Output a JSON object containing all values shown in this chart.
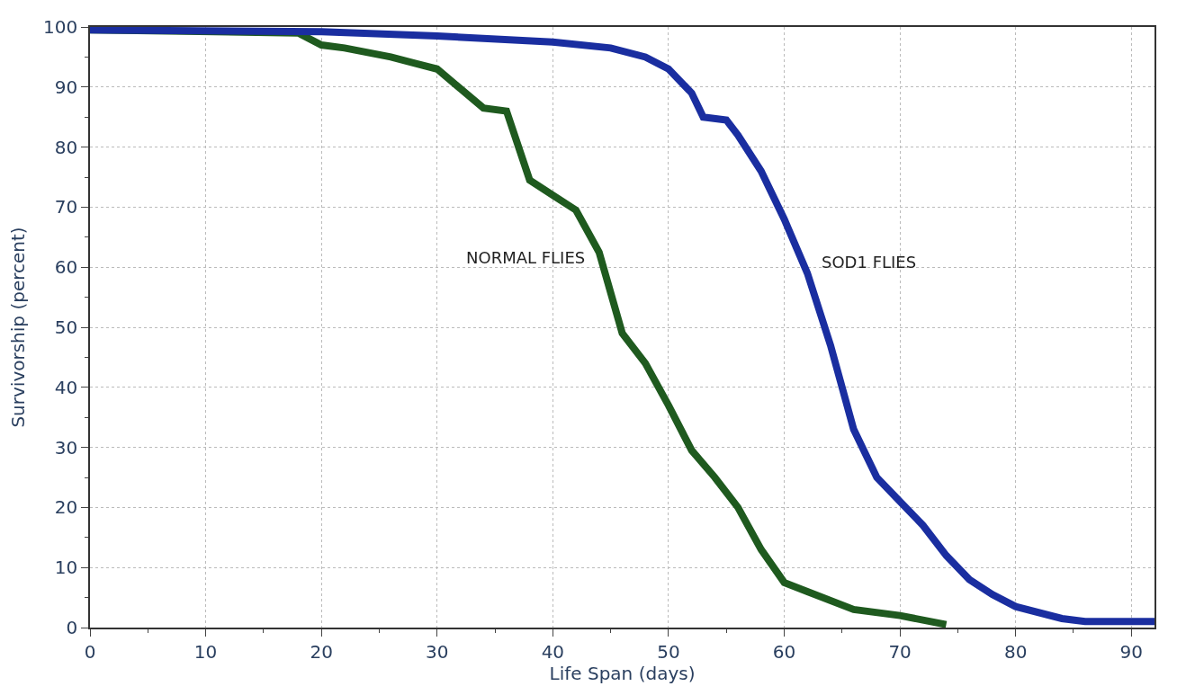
{
  "chart_data": {
    "type": "line",
    "xlabel": "Life Span (days)",
    "ylabel": "Survivorship (percent)",
    "xlim": [
      0,
      92
    ],
    "ylim": [
      0,
      100
    ],
    "xticks": [
      0,
      10,
      20,
      30,
      40,
      50,
      60,
      70,
      80,
      90
    ],
    "yticks": [
      0,
      10,
      20,
      30,
      40,
      50,
      60,
      70,
      80,
      90,
      100
    ],
    "grid": true,
    "legend": false,
    "marker": "none",
    "line_style": "solid",
    "series": [
      {
        "name": "NORMAL FLIES",
        "color": "#1f5a1f",
        "x": [
          0,
          18,
          20,
          22,
          26,
          28,
          30,
          34,
          36,
          38,
          40,
          42,
          44,
          46,
          48,
          50,
          52,
          54,
          56,
          58,
          60,
          62,
          66,
          70,
          74
        ],
        "values": [
          99.5,
          99,
          97,
          96.5,
          95,
          94,
          93,
          86.5,
          86,
          74.5,
          72,
          69.5,
          62.5,
          49,
          44,
          37,
          29.5,
          25,
          20,
          13,
          7.5,
          6,
          3,
          2,
          0.5
        ]
      },
      {
        "name": "SOD1 FLIES",
        "color": "#1a2ea0",
        "x": [
          0,
          20,
          30,
          40,
          45,
          48,
          50,
          52,
          53,
          55,
          56,
          58,
          60,
          62,
          64,
          66,
          68,
          70,
          72,
          74,
          76,
          78,
          80,
          84,
          86,
          92
        ],
        "values": [
          99.5,
          99.2,
          98.5,
          97.5,
          96.5,
          95,
          93,
          89,
          85,
          84.5,
          82,
          76,
          68,
          59,
          47,
          33,
          25,
          21,
          17,
          12,
          8,
          5.5,
          3.5,
          1.5,
          1,
          1
        ]
      }
    ]
  }
}
